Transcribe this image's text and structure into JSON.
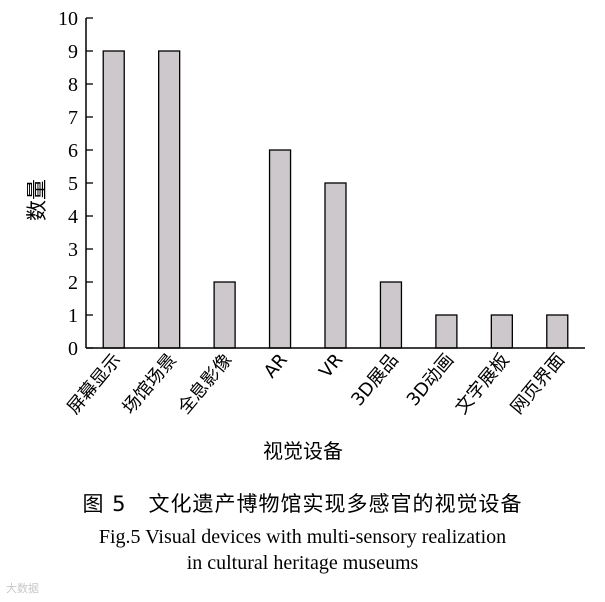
{
  "chart_data": {
    "type": "bar",
    "categories": [
      "屏幕显示",
      "场馆场景",
      "全息影像",
      "AR",
      "VR",
      "3D展品",
      "3D动画",
      "文字展板",
      "网页界面"
    ],
    "values": [
      9,
      9,
      2,
      6,
      5,
      2,
      1,
      1,
      1
    ],
    "xlabel": "视觉设备",
    "ylabel": "数量",
    "ylim": [
      0,
      10
    ],
    "yticks": [
      0,
      1,
      2,
      3,
      4,
      5,
      6,
      7,
      8,
      9,
      10
    ],
    "grid": false,
    "legend": "none",
    "bar_color": "#ccc8cb",
    "bar_stroke": "#000000"
  },
  "caption": {
    "zh": "图 5　文化遗产博物馆实现多感官的视觉设备",
    "en_line1": "Fig.5 Visual devices with multi-sensory realization",
    "en_line2": "in cultural heritage museums"
  },
  "watermark": "大数据"
}
